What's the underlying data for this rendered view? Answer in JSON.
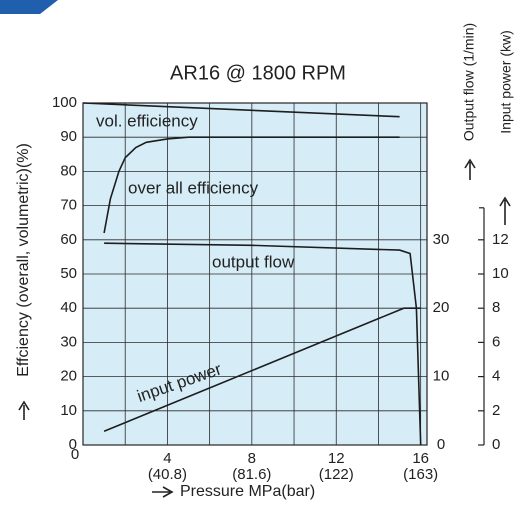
{
  "chart_data": {
    "type": "line",
    "title": "AR16 @ 1800 RPM",
    "y_label": "Effciency (overall, volumetric)(%)",
    "x_label": "Pressure MPa(bar)",
    "y2_label": "Output flow (1/min)",
    "y3_label": "Input power (kw)",
    "xlim": [
      0,
      16.3
    ],
    "xticks": [
      0,
      4,
      8,
      12,
      16
    ],
    "xtick_sublabels": [
      null,
      "(40.8)",
      "(81.6)",
      "(122)",
      "(163)"
    ],
    "ylim": [
      0,
      100
    ],
    "yticks": [
      0,
      10,
      20,
      30,
      40,
      50,
      60,
      70,
      80,
      90,
      100
    ],
    "y2lim": [
      0,
      50
    ],
    "y2ticks": [
      0,
      10,
      20,
      30
    ],
    "y3lim": [
      0,
      20
    ],
    "y3ticks": [
      0,
      2,
      4,
      6,
      8,
      10,
      12
    ],
    "grid": true,
    "background": "#d6edf7",
    "series": [
      {
        "name": "vol. efficiency",
        "color": "#1d1d1d",
        "axis": "y",
        "x": [
          0,
          15
        ],
        "values": [
          100,
          96
        ]
      },
      {
        "name": "over all efficiency",
        "color": "#1d1d1d",
        "axis": "y",
        "x": [
          1,
          1.3,
          1.7,
          2,
          2.5,
          3,
          4,
          5,
          8,
          12,
          15
        ],
        "values": [
          62,
          72,
          80,
          84,
          87,
          88.5,
          89.5,
          90,
          90,
          90,
          90
        ]
      },
      {
        "name": "output flow",
        "color": "#1d1d1d",
        "axis": "y2",
        "x": [
          1,
          8,
          15,
          15.5,
          15.8,
          16
        ],
        "values": [
          29.5,
          29.2,
          28.5,
          28,
          20,
          0
        ]
      },
      {
        "name": "input power",
        "color": "#1d1d1d",
        "axis": "y3",
        "x": [
          1,
          15.2,
          16
        ],
        "values": [
          0.8,
          8,
          8
        ]
      }
    ]
  }
}
